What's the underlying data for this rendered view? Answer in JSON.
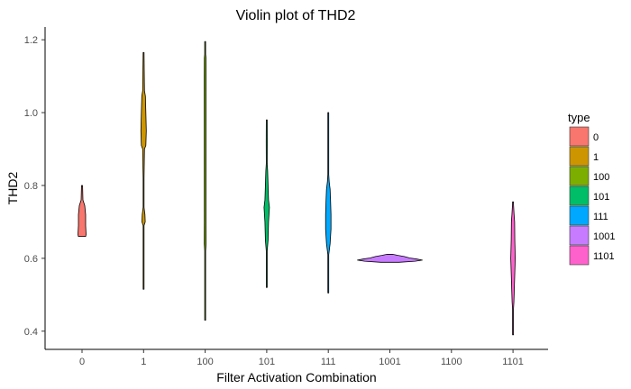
{
  "chart_data": {
    "type": "violin",
    "title": "Violin plot of THD2",
    "xlabel": "Filter Activation Combination",
    "ylabel": "THD2",
    "categories": [
      "0",
      "1",
      "100",
      "101",
      "111",
      "1001",
      "1100",
      "1101"
    ],
    "ylim": [
      0.35,
      1.235
    ],
    "yticks": [
      0.4,
      0.6,
      0.8,
      1.0,
      1.2
    ],
    "ytick_labels": [
      "0.4",
      "0.6",
      "0.8",
      "1.0",
      "1.2"
    ],
    "grid": false,
    "legend": {
      "title": "type",
      "position": "right",
      "entries": [
        "0",
        "1",
        "100",
        "101",
        "111",
        "1001",
        "1100",
        "1101"
      ]
    },
    "series": [
      {
        "category": "0",
        "color": "#F8766D",
        "min": 0.66,
        "max": 0.8,
        "profile": [
          [
            0.66,
            4
          ],
          [
            0.665,
            4.5
          ],
          [
            0.69,
            4
          ],
          [
            0.72,
            4
          ],
          [
            0.745,
            3
          ],
          [
            0.76,
            1
          ],
          [
            0.8,
            0.6
          ]
        ]
      },
      {
        "category": "1",
        "color": "#CD9600",
        "min": 0.515,
        "max": 1.165,
        "profile": [
          [
            0.515,
            0.4
          ],
          [
            0.69,
            0.5
          ],
          [
            0.7,
            1.8
          ],
          [
            0.72,
            1.5
          ],
          [
            0.74,
            0.5
          ],
          [
            0.82,
            0.5
          ],
          [
            0.9,
            1.0
          ],
          [
            0.91,
            2.5
          ],
          [
            0.95,
            3
          ],
          [
            1.0,
            2.5
          ],
          [
            1.045,
            2
          ],
          [
            1.06,
            1
          ],
          [
            1.12,
            0.7
          ],
          [
            1.165,
            0.4
          ]
        ]
      },
      {
        "category": "100",
        "color": "#7CAE00",
        "min": 0.43,
        "max": 1.195,
        "profile": [
          [
            0.43,
            0.3
          ],
          [
            0.62,
            0.4
          ],
          [
            0.64,
            1.0
          ],
          [
            0.7,
            0.9
          ],
          [
            1.1,
            1.0
          ],
          [
            1.15,
            0.9
          ],
          [
            1.16,
            0.4
          ],
          [
            1.195,
            0.3
          ]
        ]
      },
      {
        "category": "101",
        "color": "#00BE67",
        "min": 0.52,
        "max": 0.98,
        "profile": [
          [
            0.52,
            0.4
          ],
          [
            0.62,
            0.5
          ],
          [
            0.65,
            1.5
          ],
          [
            0.7,
            2
          ],
          [
            0.74,
            3
          ],
          [
            0.76,
            2
          ],
          [
            0.8,
            1.5
          ],
          [
            0.84,
            1
          ],
          [
            0.86,
            0.5
          ],
          [
            0.92,
            0.6
          ],
          [
            0.98,
            0.4
          ]
        ]
      },
      {
        "category": "111",
        "color": "#00A9FF",
        "min": 0.505,
        "max": 1.0,
        "profile": [
          [
            0.505,
            0.4
          ],
          [
            0.61,
            0.5
          ],
          [
            0.64,
            2
          ],
          [
            0.68,
            3
          ],
          [
            0.72,
            3
          ],
          [
            0.76,
            2.5
          ],
          [
            0.79,
            2
          ],
          [
            0.81,
            1
          ],
          [
            0.83,
            0.5
          ],
          [
            1.0,
            0.3
          ]
        ]
      },
      {
        "category": "1001",
        "color": "#C77CFF",
        "min": 0.589,
        "max": 0.611,
        "profile": [
          [
            0.589,
            10
          ],
          [
            0.592,
            28
          ],
          [
            0.595,
            36
          ],
          [
            0.598,
            30
          ],
          [
            0.601,
            22
          ],
          [
            0.605,
            16
          ],
          [
            0.608,
            9
          ],
          [
            0.611,
            3
          ]
        ]
      },
      {
        "category": "1101",
        "color": "#FF61CC",
        "min": 0.39,
        "max": 0.755,
        "profile": [
          [
            0.39,
            0.3
          ],
          [
            0.46,
            0.4
          ],
          [
            0.48,
            1.0
          ],
          [
            0.52,
            1.5
          ],
          [
            0.56,
            2
          ],
          [
            0.6,
            2.5
          ],
          [
            0.65,
            2
          ],
          [
            0.7,
            1.8
          ],
          [
            0.72,
            1.2
          ],
          [
            0.75,
            0.5
          ],
          [
            0.755,
            0.3
          ]
        ]
      }
    ]
  }
}
